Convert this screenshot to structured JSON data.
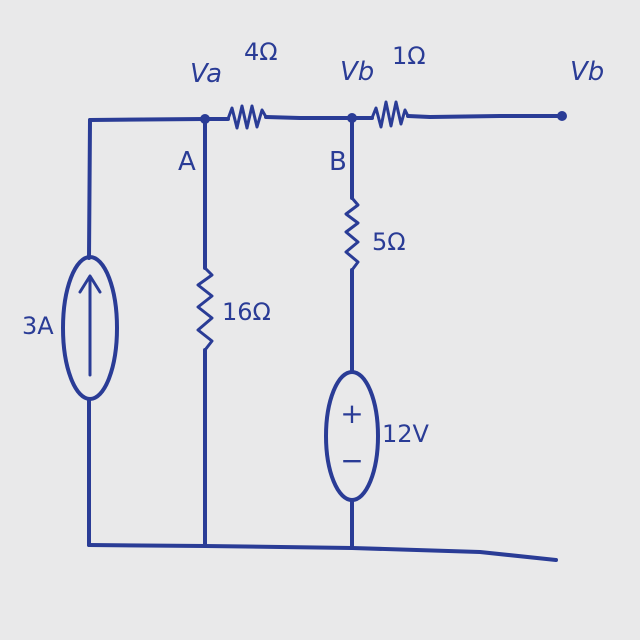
{
  "diagram": {
    "ink_color": "#2a3c96",
    "background_color": "#e9e9ea",
    "labels": {
      "va": "Va",
      "vb_node": "Vb",
      "vb_terminal": "Vb",
      "node_a": "A",
      "node_b": "B",
      "r_4": "4Ω",
      "r_1": "1Ω",
      "r_5": "5Ω",
      "r_16": "16Ω",
      "current_source": "3A",
      "voltage_source": "12V",
      "plus_sign": "+",
      "minus_sign": "−"
    }
  }
}
